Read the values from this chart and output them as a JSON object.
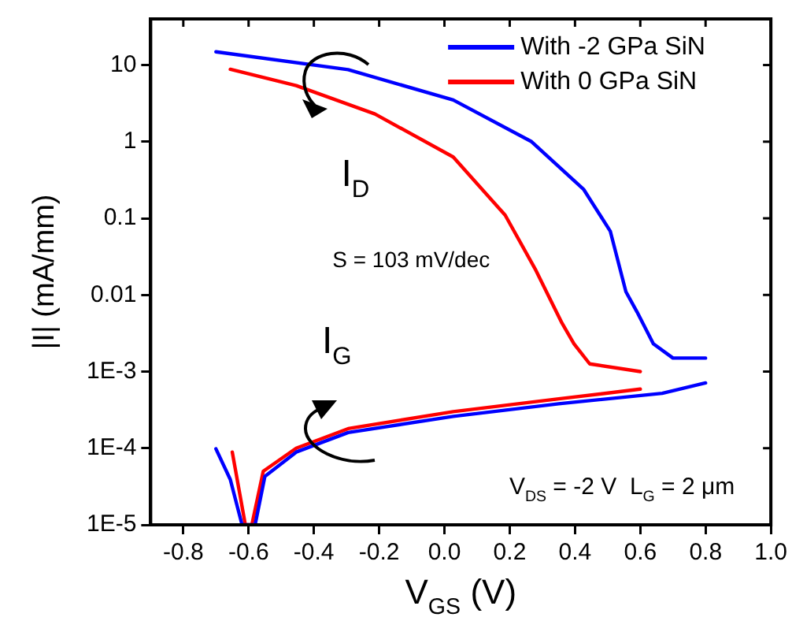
{
  "chart_data": {
    "type": "line",
    "xlabel": "V$_{GS}$ (V)",
    "ylabel": "|I| (mA/mm)",
    "xlim": [
      -0.9,
      1.0
    ],
    "xticks": [
      -0.8,
      -0.6,
      -0.4,
      -0.2,
      {
        "value": 0,
        "label": "0.0"
      },
      0.2,
      0.4,
      0.6,
      0.8,
      {
        "value": 1,
        "label": "1.0"
      }
    ],
    "ylim": [
      1e-05,
      40
    ],
    "yticks": [
      {
        "value": 10,
        "label": "10"
      },
      {
        "value": 1,
        "label": "1"
      },
      {
        "value": 0.1,
        "label": "0.1"
      },
      {
        "value": 0.01,
        "label": "0.01"
      },
      {
        "value": 0.001,
        "label": "1E-3"
      },
      {
        "value": 0.0001,
        "label": "1E-4"
      },
      {
        "value": 1e-05,
        "label": "1E-5"
      }
    ],
    "log": "y",
    "grid": false,
    "legend": "top right",
    "marker": "none",
    "line_style": "solid",
    "annotations": [
      "I$_{D}$",
      "S = 103 mV/dec",
      "I$_{G}$",
      "V$_{DS}$ = -2 V  L$_{G}$ = 2 μm"
    ],
    "series": [
      {
        "name": "With -2 GPa SiN",
        "color": "#0000ff",
        "x": [
          -0.7,
          -0.295,
          0.027,
          0.267,
          0.426,
          0.508,
          0.556,
          0.59,
          0.64,
          0.7,
          0.8
        ],
        "values": [
          14.9,
          8.7,
          3.5,
          1,
          0.24,
          0.068,
          0.011,
          0.006,
          0.0023,
          0.0015,
          0.0015
        ]
      },
      {
        "name": "With 0 GPa SiN",
        "color": "#ff0000",
        "x": [
          -0.656,
          -0.454,
          -0.213,
          0.027,
          0.186,
          0.28,
          0.36,
          0.397,
          0.445,
          0.6
        ],
        "values": [
          8.8,
          5.4,
          2.3,
          0.63,
          0.11,
          0.021,
          0.0043,
          0.0023,
          0.00126,
          0.001
        ]
      },
      {
        "color": "#0000ff",
        "x": [
          -0.7,
          -0.656,
          -0.62,
          -0.58,
          -0.55,
          -0.454,
          -0.295,
          0.027,
          0.35,
          0.667,
          0.8
        ],
        "values": [
          9.8e-05,
          3.9e-05,
          1e-05,
          1e-05,
          4.3e-05,
          8.9e-05,
          0.00016,
          0.00026,
          0.00038,
          0.00052,
          0.00071
        ]
      },
      {
        "color": "#ff0000",
        "x": [
          -0.65,
          -0.61,
          -0.59,
          -0.555,
          -0.454,
          -0.295,
          0.027,
          0.35,
          0.6
        ],
        "values": [
          8.9e-05,
          1e-05,
          1e-05,
          5e-05,
          0.0001,
          0.00018,
          0.0003,
          0.00044,
          0.00059
        ]
      }
    ]
  }
}
